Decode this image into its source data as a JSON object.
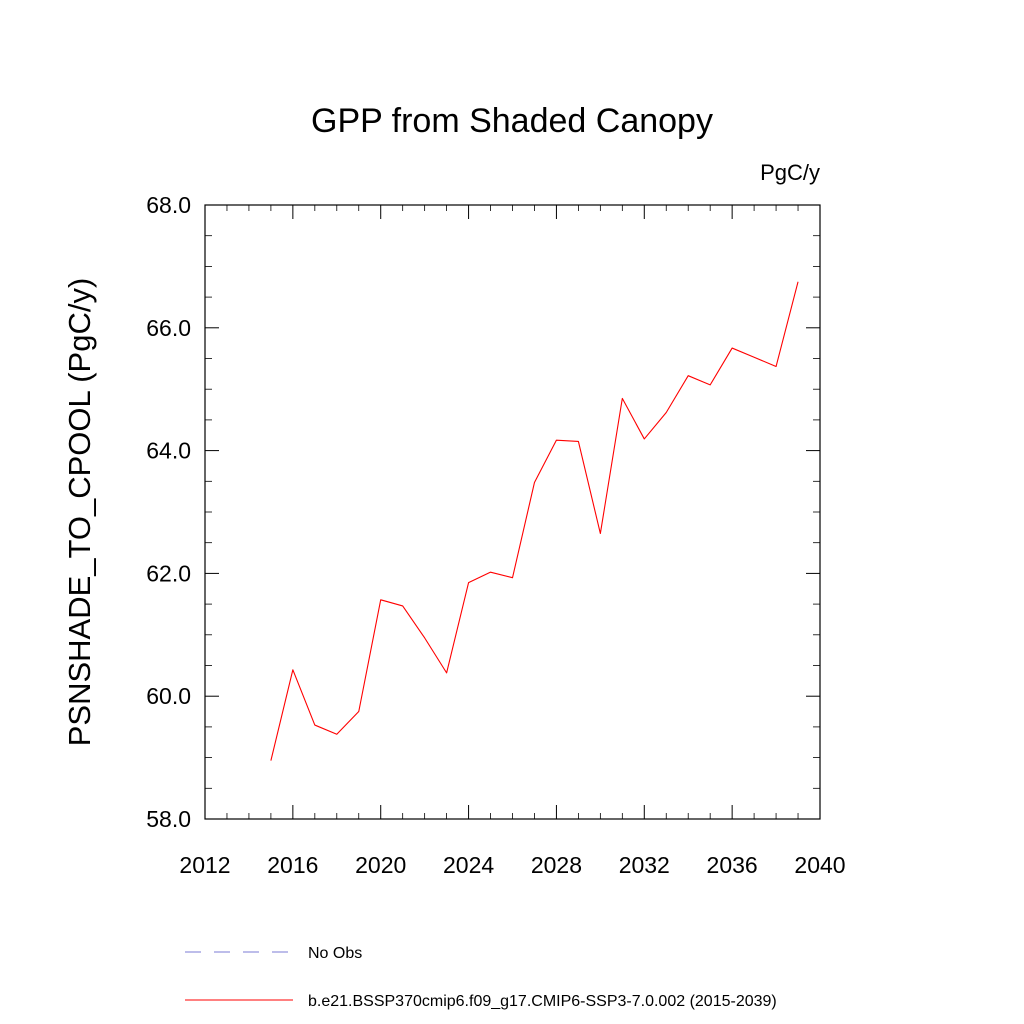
{
  "chart_data": {
    "type": "line",
    "title": "GPP from Shaded Canopy",
    "units_label": "PgC/y",
    "ylabel": "PSNSHADE_TO_CPOOL  (PgC/y)",
    "xlabel": "",
    "xlim": [
      2012,
      2040
    ],
    "ylim": [
      58.0,
      68.0
    ],
    "x_ticks": [
      2012,
      2016,
      2020,
      2024,
      2028,
      2032,
      2036,
      2040
    ],
    "x_tick_labels": [
      "2012",
      "2016",
      "2020",
      "2024",
      "2028",
      "2032",
      "2036",
      "2040"
    ],
    "y_ticks": [
      58.0,
      60.0,
      62.0,
      64.0,
      66.0,
      68.0
    ],
    "y_tick_labels": [
      "58.0",
      "60.0",
      "62.0",
      "64.0",
      "66.0",
      "68.0"
    ],
    "grid": false,
    "legend_placement": "bottom",
    "series": [
      {
        "name": "b.e21.BSSP370cmip6.f09_g17.CMIP6-SSP3-7.0.002 (2015-2039)",
        "color": "#ff0000",
        "dash": "solid",
        "x": [
          2015,
          2016,
          2017,
          2018,
          2019,
          2020,
          2021,
          2022,
          2023,
          2024,
          2025,
          2026,
          2027,
          2028,
          2029,
          2030,
          2031,
          2032,
          2033,
          2034,
          2035,
          2036,
          2037,
          2038,
          2039
        ],
        "y": [
          58.95,
          60.43,
          59.53,
          59.38,
          59.75,
          61.57,
          61.47,
          60.95,
          60.38,
          61.85,
          62.02,
          61.93,
          63.48,
          64.17,
          64.15,
          62.65,
          64.85,
          64.19,
          64.62,
          65.22,
          65.07,
          65.67,
          65.52,
          65.37,
          66.75
        ]
      }
    ],
    "legend": [
      {
        "label": "No Obs",
        "color": "#7b7bd6",
        "dash": "dashed"
      },
      {
        "label": "b.e21.BSSP370cmip6.f09_g17.CMIP6-SSP3-7.0.002 (2015-2039)",
        "color": "#ff0000",
        "dash": "solid"
      }
    ]
  }
}
